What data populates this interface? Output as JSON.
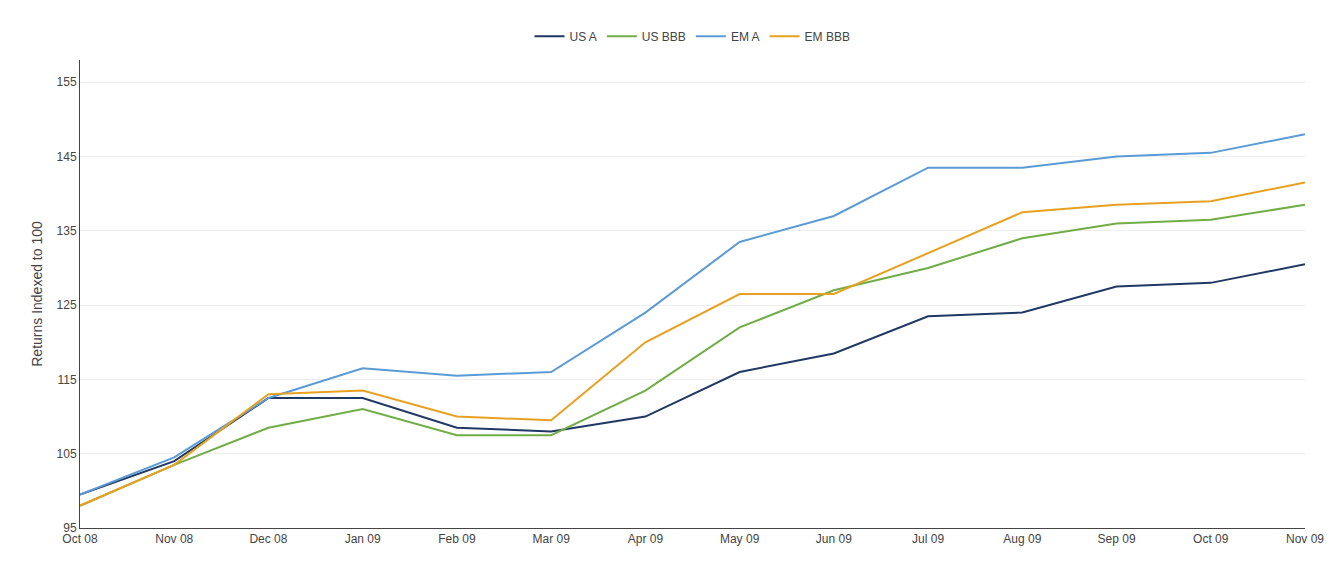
{
  "chart_data": {
    "type": "line",
    "ylabel": "Returns Indexed to 100",
    "categories": [
      "Oct 08",
      "Nov 08",
      "Dec 08",
      "Jan 09",
      "Feb 09",
      "Mar 09",
      "Apr 09",
      "May 09",
      "Jun 09",
      "Jul 09",
      "Aug 09",
      "Sep 09",
      "Oct 09",
      "Nov 09"
    ],
    "series": [
      {
        "name": "US A",
        "color": "#1f3864",
        "values": [
          99.5,
          104.0,
          112.5,
          112.5,
          108.5,
          108.0,
          110.0,
          116.0,
          118.5,
          123.5,
          124.0,
          127.5,
          128.0,
          130.5
        ]
      },
      {
        "name": "US BBB",
        "color": "#70ad47",
        "values": [
          98.0,
          103.5,
          108.5,
          111.0,
          107.5,
          107.5,
          113.5,
          122.0,
          127.0,
          130.0,
          134.0,
          136.0,
          136.5,
          138.5
        ]
      },
      {
        "name": "EM A",
        "color": "#5b9bd5",
        "values": [
          99.5,
          104.5,
          112.5,
          116.5,
          115.5,
          116.0,
          124.0,
          133.5,
          137.0,
          143.5,
          143.5,
          145.0,
          145.5,
          148.0
        ]
      },
      {
        "name": "EM BBB",
        "color": "#e8a020",
        "values": [
          98.0,
          103.5,
          113.0,
          113.5,
          110.0,
          109.5,
          120.0,
          126.5,
          126.5,
          132.0,
          137.5,
          138.5,
          139.0,
          141.5
        ]
      }
    ],
    "ylim": [
      95,
      158
    ],
    "yticks": [
      95,
      105,
      115,
      125,
      135,
      145,
      155
    ],
    "grid": true,
    "legend": "top"
  }
}
